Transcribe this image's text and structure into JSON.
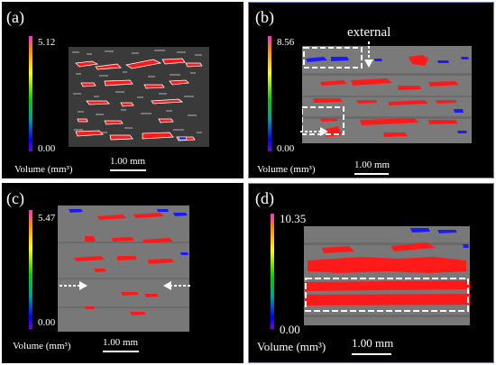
{
  "panels": [
    {
      "label": "(a)",
      "cbar_max": "5.12",
      "cbar_min": "0.00",
      "volume": "Volume (mm³)",
      "scale": "1.00 mm"
    },
    {
      "label": "(b)",
      "cbar_max": "8.56",
      "cbar_min": "0.00",
      "volume": "Volume (mm³)",
      "scale": "1.00 mm",
      "annotation": "external"
    },
    {
      "label": "(c)",
      "cbar_max": "5.47",
      "cbar_min": "0.00",
      "volume": "Volume (mm³)",
      "scale": "1.00 mm"
    },
    {
      "label": "(d)",
      "cbar_max": "10.35",
      "cbar_min": "0.00",
      "volume": "Volume (mm³)",
      "scale": "1.00 mm"
    }
  ],
  "colors": {
    "pore_red": "#ff1a1a",
    "pore_blue": "#1a1aff",
    "ct_gray": "#7a7a7a",
    "background": "#000000",
    "panel_border": "#6f86a8"
  }
}
